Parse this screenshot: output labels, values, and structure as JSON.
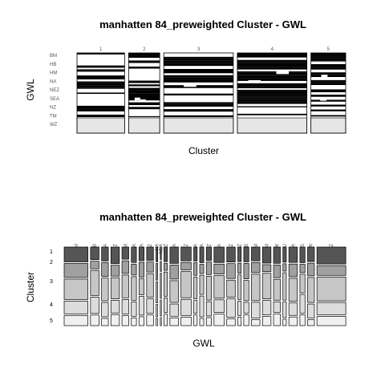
{
  "chart_data": [
    {
      "type": "mosaic",
      "title": "manhatten 84_preweighted Cluster - GWL",
      "xlabel": "Cluster",
      "ylabel": "GWL",
      "clusters": [
        "1",
        "2",
        "3",
        "4",
        "5"
      ],
      "cluster_share": [
        0.13,
        0.085,
        0.19,
        0.19,
        0.095
      ],
      "gwl_tick_labels": [
        "BM",
        "HB",
        "HM",
        "NA",
        "NEZ",
        "SEA",
        "NZ",
        "TM",
        "WZ"
      ],
      "shading_levels": [
        "black",
        "white",
        "light-grey"
      ]
    },
    {
      "type": "mosaic",
      "title": "manhatten 84_preweighted Cluster - GWL",
      "xlabel": "GWL",
      "ylabel": "Cluster",
      "clusters": [
        "1",
        "2",
        "3",
        "4",
        "5"
      ],
      "gwl_labels": [
        "BM",
        "HB",
        "FA",
        "FZ",
        "HM",
        "NA",
        "FA",
        "FZ",
        "NA",
        "NEA",
        "NEZ",
        "VA",
        "NZ",
        "SA",
        "SEA",
        "SEZ",
        "VA",
        "VZ",
        "BZ",
        "TB",
        "TM",
        "RM",
        "RW",
        "U",
        "VA",
        "VS",
        "VW",
        "WZ"
      ],
      "gwl_share": [
        0.07,
        0.025,
        0.02,
        0.025,
        0.02,
        0.015,
        0.015,
        0.02,
        0.005,
        0.003,
        0.01,
        0.025,
        0.03,
        0.01,
        0.012,
        0.015,
        0.03,
        0.025,
        0.01,
        0.015,
        0.025,
        0.025,
        0.02,
        0.01,
        0.025,
        0.015,
        0.02,
        0.085
      ]
    }
  ]
}
